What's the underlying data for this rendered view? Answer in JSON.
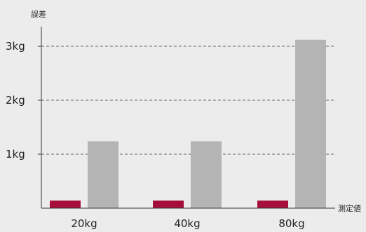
{
  "colors": {
    "background": "#ececec",
    "series_a": "#a50f3a",
    "series_b": "#b4b4b4",
    "axis": "#333333",
    "grid": "#666666"
  },
  "chart_data": {
    "type": "bar",
    "title": "",
    "xlabel": "測定値",
    "ylabel": "誤差",
    "categories": [
      "20kg",
      "40kg",
      "80kg"
    ],
    "y_ticks": [
      {
        "value": 1,
        "label": "1kg"
      },
      {
        "value": 2,
        "label": "2kg"
      },
      {
        "value": 3,
        "label": "3kg"
      }
    ],
    "ylim": [
      0,
      3.2
    ],
    "grid": "horizontal dashed",
    "legend": "none",
    "series": [
      {
        "color": "#a50f3a",
        "values": [
          0.14,
          0.14,
          0.14
        ]
      },
      {
        "color": "#b4b4b4",
        "values": [
          1.24,
          1.24,
          3.12
        ]
      }
    ]
  }
}
